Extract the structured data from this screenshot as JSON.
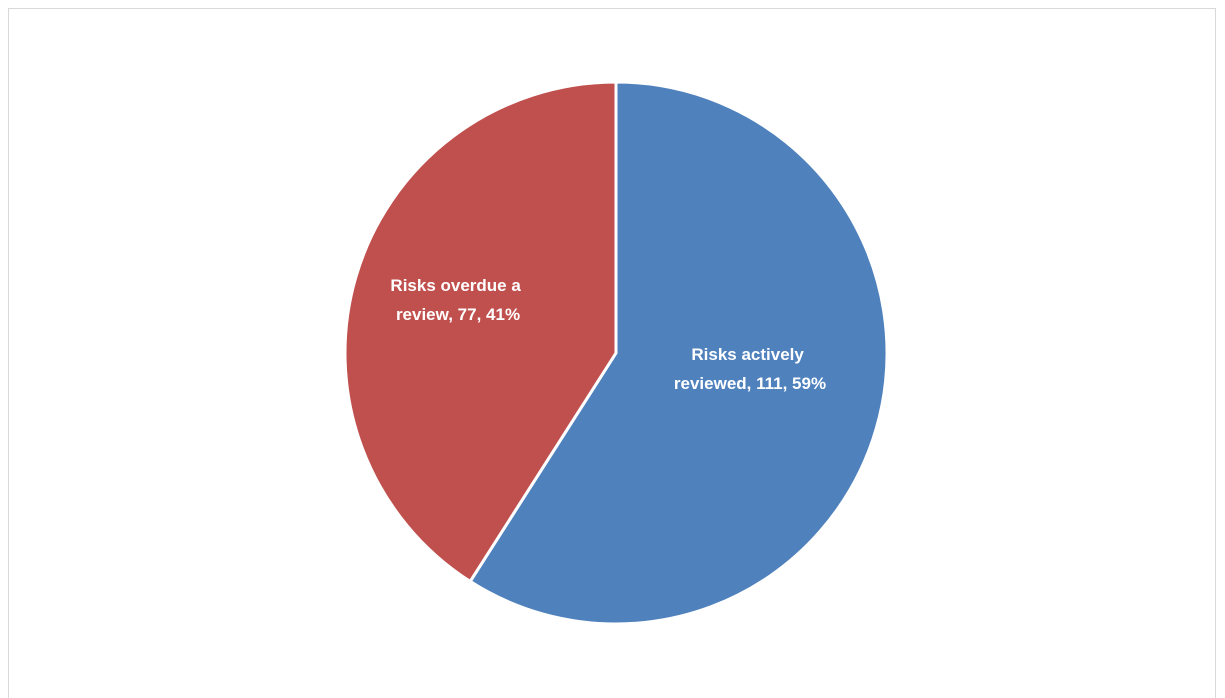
{
  "chart_data": {
    "type": "pie",
    "title": "",
    "slices": [
      {
        "label_lines": [
          "Risks actively",
          "reviewed, 111, 59%"
        ],
        "category": "Risks actively reviewed",
        "value": 111,
        "percent": 59,
        "color": "#4f81bd"
      },
      {
        "label_lines": [
          "Risks overdue a",
          "review, 77, 41%"
        ],
        "category": "Risks overdue a review",
        "value": 77,
        "percent": 41,
        "color": "#c0504d"
      }
    ],
    "legend": false
  }
}
